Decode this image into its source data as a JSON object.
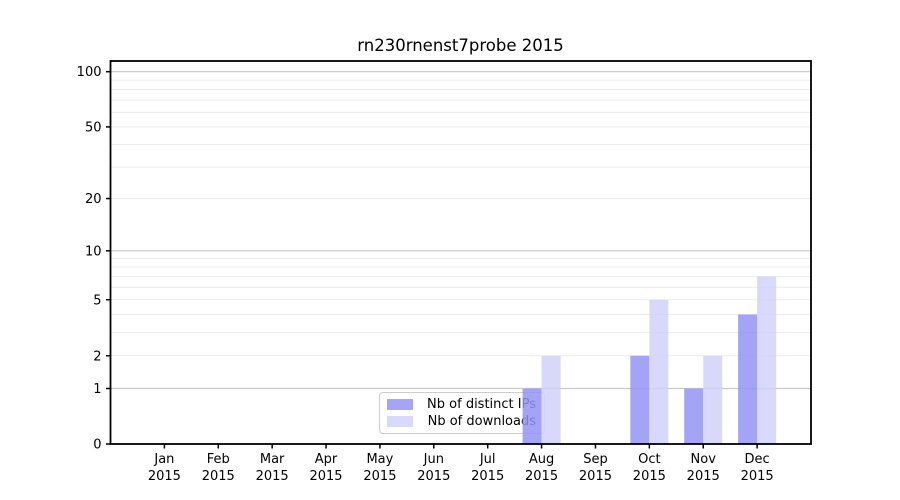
{
  "title": "rn230rnenst7probe 2015",
  "chart_data": {
    "type": "bar",
    "title": "rn230rnenst7probe 2015",
    "categories": [
      "Jan",
      "Feb",
      "Mar",
      "Apr",
      "May",
      "Jun",
      "Jul",
      "Aug",
      "Sep",
      "Oct",
      "Nov",
      "Dec"
    ],
    "x_tick_year": "2015",
    "series": [
      {
        "name": "Nb of distinct IPs",
        "color": "#9595f5",
        "values": [
          0,
          0,
          0,
          0,
          0,
          0,
          0,
          1,
          0,
          2,
          1,
          4
        ]
      },
      {
        "name": "Nb of downloads",
        "color": "#d2d2fa",
        "values": [
          0,
          0,
          0,
          0,
          0,
          0,
          0,
          2,
          0,
          5,
          2,
          7
        ]
      }
    ],
    "y_axis": {
      "scale": "log1p",
      "ticks": [
        0,
        1,
        2,
        5,
        10,
        20,
        50,
        100
      ],
      "grid_major": [
        1,
        10,
        100
      ],
      "grid_minor": [
        2,
        3,
        4,
        5,
        6,
        7,
        8,
        9,
        20,
        30,
        40,
        50,
        60,
        70,
        80,
        90
      ],
      "range_max": 113
    },
    "legend_labels": [
      "Nb of distinct IPs",
      "Nb of downloads"
    ],
    "colors": {
      "bar_distinct_ips": "#9595f5",
      "bar_downloads": "#d2d2fa",
      "grid_minor": "#ececec",
      "grid_major": "#c9c9c9",
      "axis": "#000000",
      "legend_border": "#cccccc",
      "text": "#000000"
    }
  }
}
